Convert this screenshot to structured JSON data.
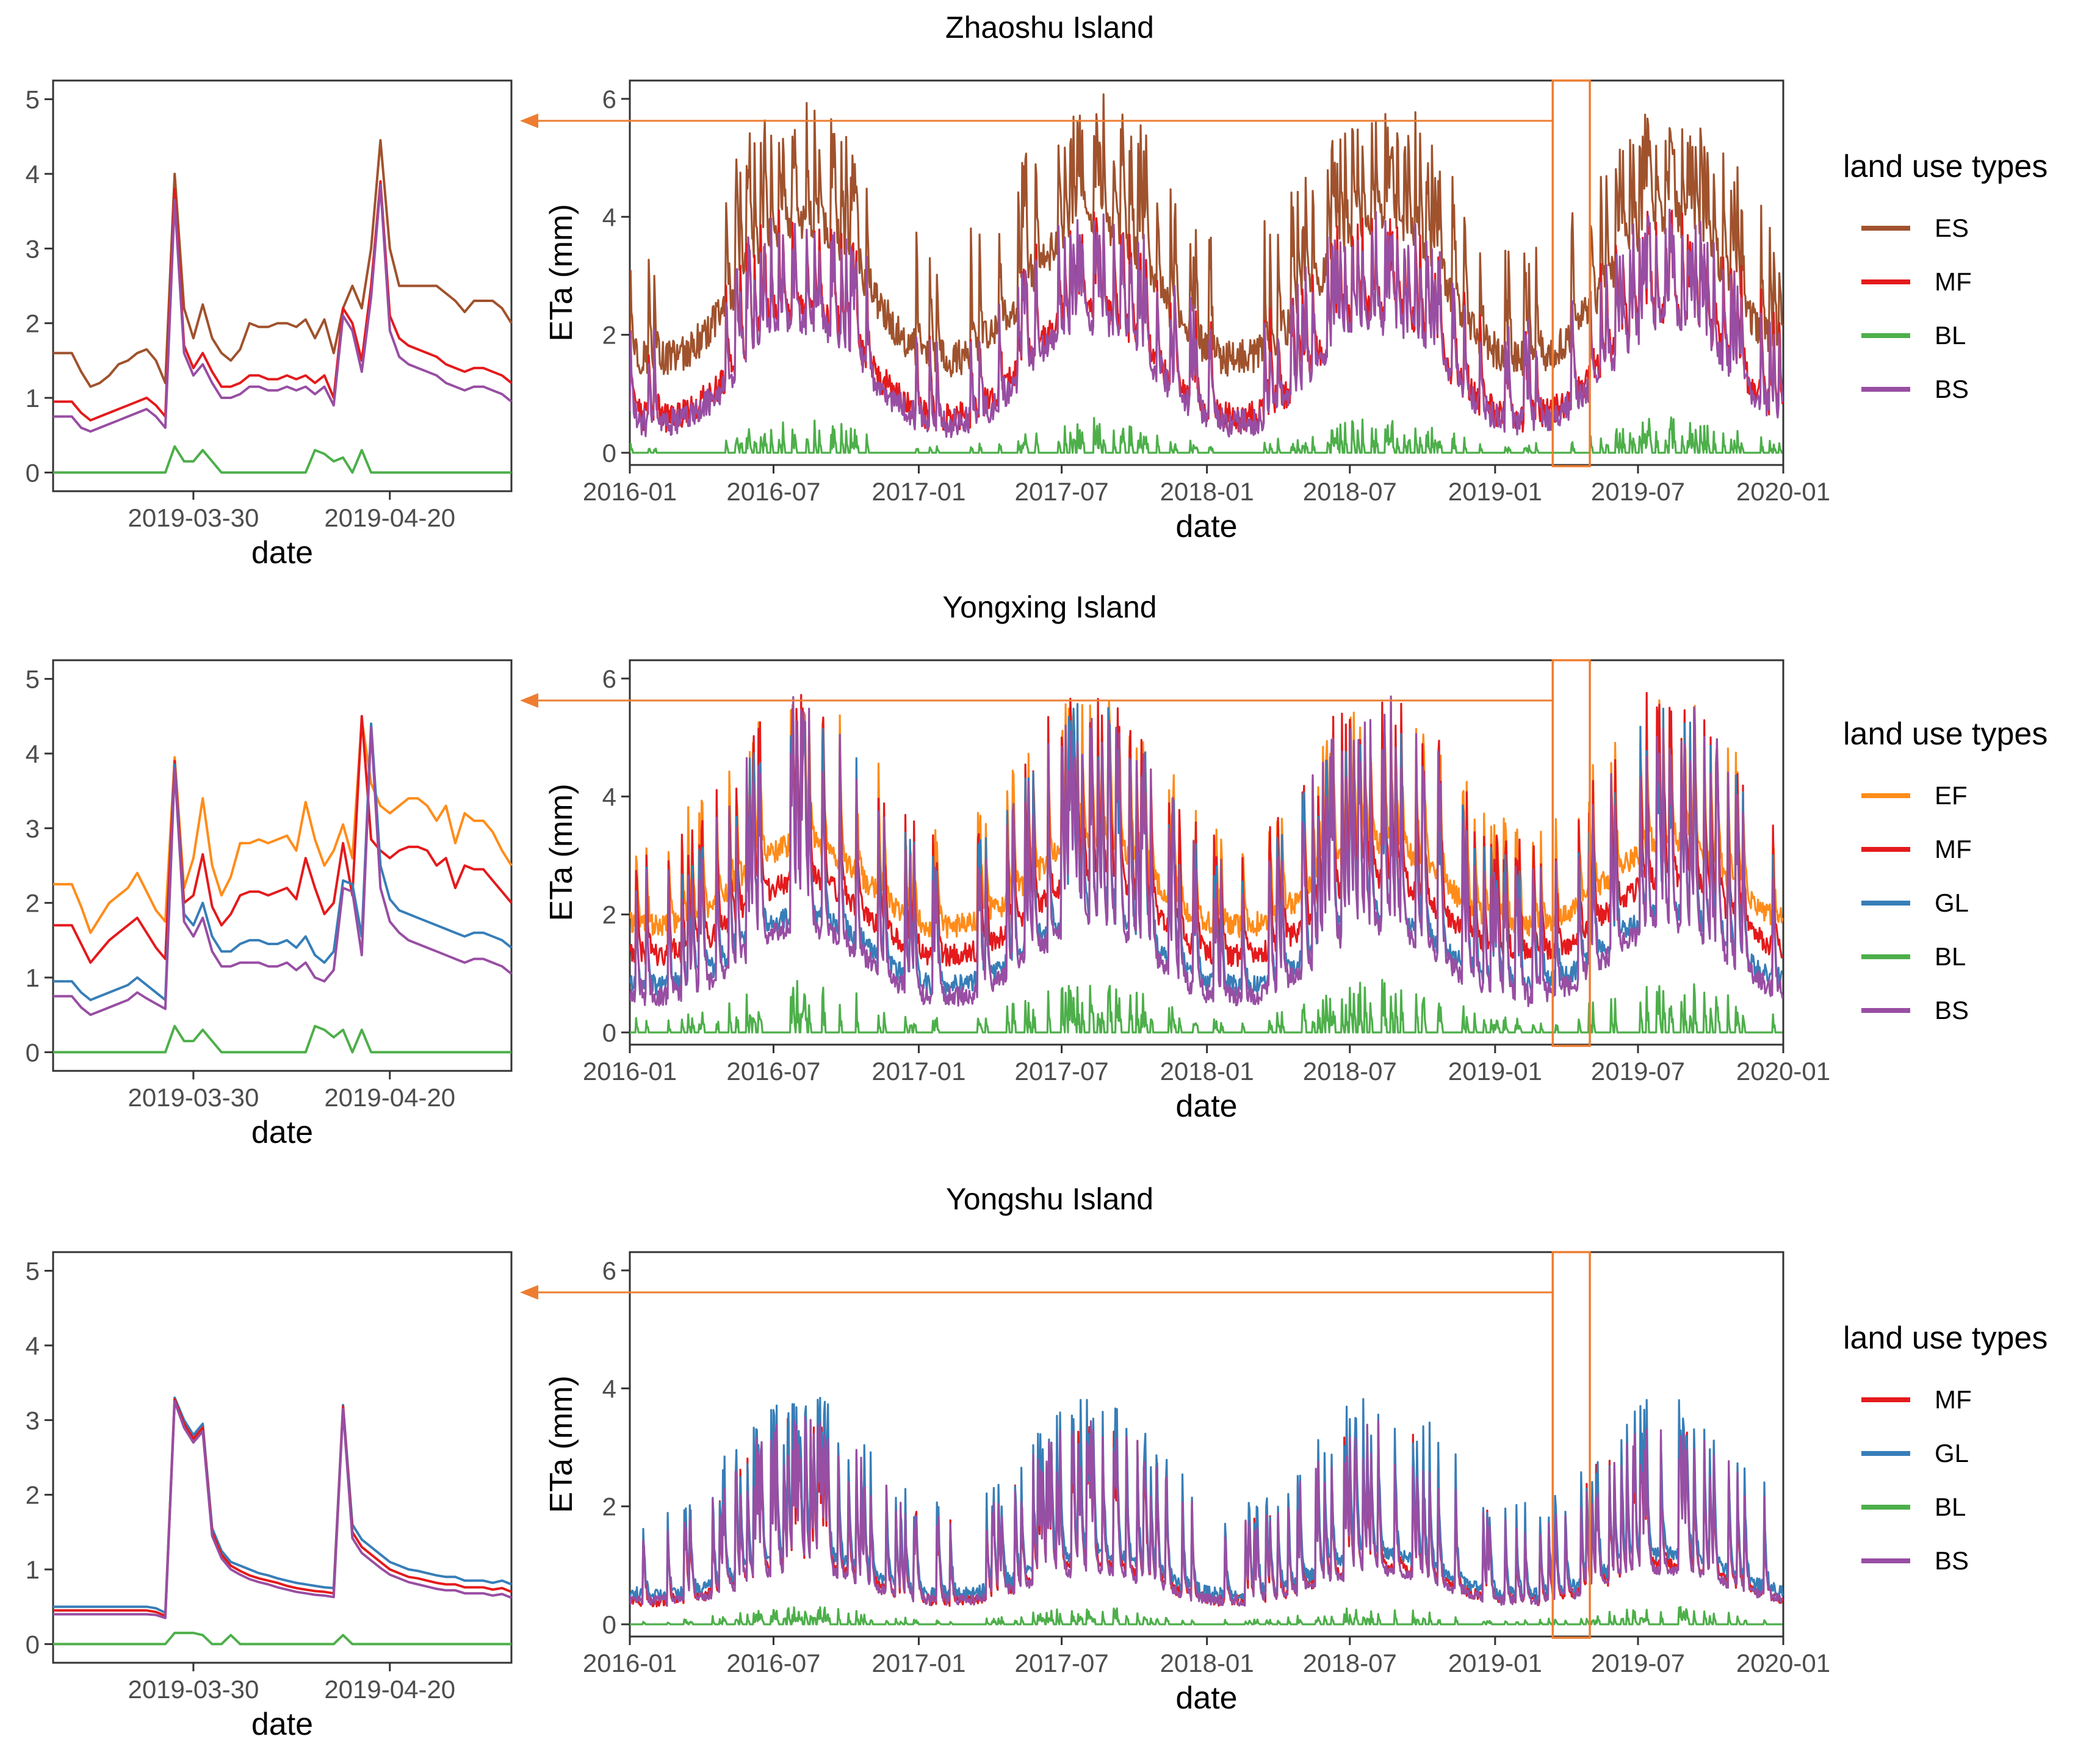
{
  "colors": {
    "ES": "#A0522D",
    "EF": "#FF8C1A",
    "MF": "#E41A1C",
    "GL": "#377EB8",
    "BL": "#4DAF4A",
    "BS": "#984EA3",
    "highlight": "#ED7D31",
    "axis": "#333333",
    "tick": "#4D4D4D"
  },
  "chart_data": [
    {
      "id": "zhaoshu",
      "type": "line",
      "title": "Zhaoshu Island",
      "legend_title": "land use types",
      "legend": [
        "ES",
        "MF",
        "BL",
        "BS"
      ],
      "main": {
        "xlabel": "date",
        "ylabel": "ETa (mm)",
        "xlim": [
          "2016-01",
          "2020-01"
        ],
        "ylim": [
          0,
          6
        ],
        "xticks": [
          "2016-01",
          "2016-07",
          "2017-01",
          "2017-07",
          "2018-01",
          "2018-07",
          "2019-01",
          "2019-07",
          "2020-01"
        ],
        "yticks": [
          0,
          2,
          4,
          6
        ],
        "highlight_window": [
          "2019-03-15",
          "2019-05-01"
        ],
        "series_profile": {
          "ES": {
            "base_min": 1.6,
            "base_max": 3.9,
            "peak_max": 5.8
          },
          "MF": {
            "base_min": 0.6,
            "base_max": 2.4,
            "peak_max": 4.0
          },
          "BS": {
            "base_min": 0.5,
            "base_max": 2.2,
            "peak_max": 4.0
          },
          "BL": {
            "base_min": 0.0,
            "base_max": 0.0,
            "peak_max": 0.6
          }
        }
      },
      "inset": {
        "xlabel": "date",
        "xticks": [
          "2019-03-30",
          "2019-04-20"
        ],
        "yticks": [
          0,
          1,
          2,
          3,
          4,
          5
        ],
        "ylim": [
          -0.25,
          5.25
        ],
        "x_start": "2019-03-15",
        "series": [
          {
            "name": "ES",
            "values": [
              1.6,
              1.6,
              1.6,
              1.35,
              1.15,
              1.2,
              1.3,
              1.45,
              1.5,
              1.6,
              1.65,
              1.5,
              1.2,
              4.0,
              2.2,
              1.8,
              2.25,
              1.8,
              1.6,
              1.5,
              1.65,
              2.0,
              1.95,
              1.95,
              2.0,
              2.0,
              1.95,
              2.05,
              1.8,
              2.05,
              1.6,
              2.2,
              2.5,
              2.2,
              3.0,
              4.45,
              3.0,
              2.5,
              2.5,
              2.5,
              2.5,
              2.5,
              2.4,
              2.3,
              2.15,
              2.3,
              2.3,
              2.3,
              2.2,
              2.0
            ]
          },
          {
            "name": "MF",
            "values": [
              0.95,
              0.95,
              0.95,
              0.8,
              0.7,
              0.75,
              0.8,
              0.85,
              0.9,
              0.95,
              1.0,
              0.9,
              0.75,
              3.8,
              1.7,
              1.4,
              1.6,
              1.35,
              1.15,
              1.15,
              1.2,
              1.3,
              1.3,
              1.25,
              1.25,
              1.3,
              1.25,
              1.3,
              1.2,
              1.3,
              1.0,
              2.2,
              2.0,
              1.5,
              2.5,
              3.9,
              2.1,
              1.8,
              1.7,
              1.65,
              1.6,
              1.55,
              1.45,
              1.4,
              1.35,
              1.4,
              1.4,
              1.35,
              1.3,
              1.2
            ]
          },
          {
            "name": "BS",
            "values": [
              0.75,
              0.75,
              0.75,
              0.6,
              0.55,
              0.6,
              0.65,
              0.7,
              0.75,
              0.8,
              0.85,
              0.75,
              0.6,
              3.65,
              1.6,
              1.3,
              1.45,
              1.2,
              1.0,
              1.0,
              1.05,
              1.15,
              1.15,
              1.1,
              1.1,
              1.15,
              1.1,
              1.15,
              1.05,
              1.15,
              0.9,
              2.1,
              1.9,
              1.35,
              2.35,
              3.85,
              1.9,
              1.55,
              1.45,
              1.4,
              1.35,
              1.3,
              1.2,
              1.15,
              1.1,
              1.15,
              1.15,
              1.1,
              1.05,
              0.95
            ]
          },
          {
            "name": "BL",
            "values": [
              0,
              0,
              0,
              0,
              0,
              0,
              0,
              0,
              0,
              0,
              0,
              0,
              0,
              0.35,
              0.15,
              0.15,
              0.3,
              0.15,
              0,
              0,
              0,
              0,
              0,
              0,
              0,
              0,
              0,
              0,
              0.3,
              0.25,
              0.15,
              0.2,
              0,
              0.3,
              0,
              0,
              0,
              0,
              0,
              0,
              0,
              0,
              0,
              0,
              0,
              0,
              0,
              0,
              0,
              0
            ]
          }
        ]
      }
    },
    {
      "id": "yongxing",
      "type": "line",
      "title": "Yongxing Island",
      "legend_title": "land use types",
      "legend": [
        "EF",
        "MF",
        "GL",
        "BL",
        "BS"
      ],
      "main": {
        "xlabel": "date",
        "ylabel": "ETa (mm)",
        "xlim": [
          "2016-01",
          "2020-01"
        ],
        "ylim": [
          0,
          6
        ],
        "xticks": [
          "2016-01",
          "2016-07",
          "2017-01",
          "2017-07",
          "2018-01",
          "2018-07",
          "2019-01",
          "2019-07",
          "2020-01"
        ],
        "yticks": [
          0,
          2,
          4,
          6
        ],
        "highlight_window": [
          "2019-03-15",
          "2019-05-01"
        ],
        "series_profile": {
          "EF": {
            "base_min": 1.8,
            "base_max": 3.2,
            "peak_max": 5.6
          },
          "MF": {
            "base_min": 1.3,
            "base_max": 2.6,
            "peak_max": 5.7
          },
          "GL": {
            "base_min": 0.8,
            "base_max": 2.0,
            "peak_max": 5.5
          },
          "BS": {
            "base_min": 0.6,
            "base_max": 1.8,
            "peak_max": 5.6
          },
          "BL": {
            "base_min": 0.0,
            "base_max": 0.0,
            "peak_max": 0.9
          }
        }
      },
      "inset": {
        "xlabel": "date",
        "xticks": [
          "2019-03-30",
          "2019-04-20"
        ],
        "yticks": [
          0,
          1,
          2,
          3,
          4,
          5
        ],
        "ylim": [
          -0.25,
          5.25
        ],
        "x_start": "2019-03-15",
        "series": [
          {
            "name": "EF",
            "values": [
              2.25,
              2.25,
              2.25,
              1.95,
              1.6,
              1.8,
              2.0,
              2.1,
              2.2,
              2.4,
              2.15,
              1.9,
              1.75,
              3.95,
              2.2,
              2.6,
              3.4,
              2.5,
              2.1,
              2.35,
              2.8,
              2.8,
              2.85,
              2.8,
              2.85,
              2.9,
              2.7,
              3.35,
              2.85,
              2.5,
              2.7,
              3.05,
              2.6,
              4.45,
              3.6,
              3.3,
              3.2,
              3.3,
              3.4,
              3.4,
              3.3,
              3.1,
              3.3,
              2.8,
              3.2,
              3.1,
              3.1,
              2.95,
              2.7,
              2.5
            ]
          },
          {
            "name": "MF",
            "values": [
              1.7,
              1.7,
              1.7,
              1.45,
              1.2,
              1.35,
              1.5,
              1.6,
              1.7,
              1.8,
              1.6,
              1.4,
              1.25,
              3.9,
              2.0,
              2.1,
              2.65,
              1.95,
              1.7,
              1.85,
              2.1,
              2.15,
              2.15,
              2.1,
              2.15,
              2.2,
              2.05,
              2.6,
              2.2,
              1.85,
              2.0,
              2.8,
              2.1,
              4.5,
              2.85,
              2.7,
              2.6,
              2.7,
              2.75,
              2.75,
              2.7,
              2.5,
              2.6,
              2.2,
              2.5,
              2.45,
              2.45,
              2.3,
              2.15,
              2.0
            ]
          },
          {
            "name": "GL",
            "values": [
              0.95,
              0.95,
              0.95,
              0.8,
              0.7,
              0.75,
              0.8,
              0.85,
              0.9,
              1.0,
              0.9,
              0.8,
              0.7,
              3.85,
              1.85,
              1.7,
              2.0,
              1.55,
              1.35,
              1.35,
              1.45,
              1.5,
              1.5,
              1.45,
              1.45,
              1.5,
              1.4,
              1.55,
              1.3,
              1.2,
              1.35,
              2.3,
              2.25,
              1.55,
              4.4,
              2.5,
              2.05,
              1.9,
              1.85,
              1.8,
              1.75,
              1.7,
              1.65,
              1.6,
              1.55,
              1.6,
              1.6,
              1.55,
              1.5,
              1.4
            ]
          },
          {
            "name": "BS",
            "values": [
              0.75,
              0.75,
              0.75,
              0.6,
              0.5,
              0.55,
              0.6,
              0.65,
              0.7,
              0.8,
              0.72,
              0.65,
              0.58,
              3.8,
              1.75,
              1.55,
              1.8,
              1.35,
              1.15,
              1.15,
              1.2,
              1.2,
              1.2,
              1.15,
              1.15,
              1.2,
              1.1,
              1.2,
              1.0,
              0.95,
              1.1,
              2.2,
              2.15,
              1.3,
              4.35,
              2.2,
              1.75,
              1.6,
              1.5,
              1.45,
              1.4,
              1.35,
              1.3,
              1.25,
              1.2,
              1.25,
              1.25,
              1.2,
              1.15,
              1.05
            ]
          },
          {
            "name": "BL",
            "values": [
              0,
              0,
              0,
              0,
              0,
              0,
              0,
              0,
              0,
              0,
              0,
              0,
              0,
              0.35,
              0.15,
              0.15,
              0.3,
              0.15,
              0,
              0,
              0,
              0,
              0,
              0,
              0,
              0,
              0,
              0,
              0.35,
              0.3,
              0.2,
              0.3,
              0,
              0.3,
              0,
              0,
              0,
              0,
              0,
              0,
              0,
              0,
              0,
              0,
              0,
              0,
              0,
              0,
              0,
              0
            ]
          }
        ]
      }
    },
    {
      "id": "yongshu",
      "type": "line",
      "title": "Yongshu Island",
      "legend_title": "land use types",
      "legend": [
        "MF",
        "GL",
        "BL",
        "BS"
      ],
      "main": {
        "xlabel": "date",
        "ylabel": "ETa (mm)",
        "xlim": [
          "2016-01",
          "2020-01"
        ],
        "ylim": [
          0,
          6
        ],
        "xticks": [
          "2016-01",
          "2016-07",
          "2017-01",
          "2017-07",
          "2018-01",
          "2018-07",
          "2019-01",
          "2019-07",
          "2020-01"
        ],
        "yticks": [
          0,
          2,
          4,
          6
        ],
        "highlight_window": [
          "2019-03-15",
          "2019-05-01"
        ],
        "series_profile": {
          "GL": {
            "base_min": 0.5,
            "base_max": 1.2,
            "peak_max": 3.9
          },
          "MF": {
            "base_min": 0.4,
            "base_max": 1.0,
            "peak_max": 3.5
          },
          "BS": {
            "base_min": 0.4,
            "base_max": 0.9,
            "peak_max": 3.5
          },
          "BL": {
            "base_min": 0.0,
            "base_max": 0.0,
            "peak_max": 0.3
          }
        }
      },
      "inset": {
        "xlabel": "date",
        "xticks": [
          "2019-03-30",
          "2019-04-20"
        ],
        "yticks": [
          0,
          1,
          2,
          3,
          4,
          5
        ],
        "ylim": [
          -0.25,
          5.25
        ],
        "x_start": "2019-03-15",
        "series": [
          {
            "name": "GL",
            "values": [
              0.5,
              0.5,
              0.5,
              0.5,
              0.5,
              0.5,
              0.5,
              0.5,
              0.5,
              0.5,
              0.5,
              0.48,
              0.42,
              3.3,
              3.0,
              2.8,
              2.95,
              1.55,
              1.25,
              1.1,
              1.05,
              1.0,
              0.95,
              0.92,
              0.88,
              0.85,
              0.82,
              0.8,
              0.78,
              0.76,
              0.75,
              3.2,
              1.6,
              1.4,
              1.3,
              1.2,
              1.1,
              1.05,
              1.0,
              0.98,
              0.95,
              0.92,
              0.9,
              0.9,
              0.85,
              0.85,
              0.85,
              0.82,
              0.85,
              0.8
            ]
          },
          {
            "name": "MF",
            "values": [
              0.45,
              0.45,
              0.45,
              0.45,
              0.45,
              0.45,
              0.45,
              0.45,
              0.45,
              0.45,
              0.45,
              0.43,
              0.38,
              3.28,
              2.95,
              2.75,
              2.9,
              1.5,
              1.2,
              1.05,
              0.98,
              0.92,
              0.88,
              0.85,
              0.82,
              0.78,
              0.75,
              0.73,
              0.71,
              0.7,
              0.68,
              3.18,
              1.5,
              1.3,
              1.2,
              1.1,
              1.0,
              0.95,
              0.9,
              0.88,
              0.85,
              0.82,
              0.8,
              0.8,
              0.76,
              0.76,
              0.76,
              0.73,
              0.75,
              0.7
            ]
          },
          {
            "name": "BS",
            "values": [
              0.4,
              0.4,
              0.4,
              0.4,
              0.4,
              0.4,
              0.4,
              0.4,
              0.4,
              0.4,
              0.4,
              0.39,
              0.35,
              3.25,
              2.9,
              2.7,
              2.85,
              1.45,
              1.15,
              1.0,
              0.93,
              0.87,
              0.83,
              0.8,
              0.76,
              0.73,
              0.7,
              0.68,
              0.66,
              0.65,
              0.63,
              3.15,
              1.42,
              1.22,
              1.12,
              1.02,
              0.93,
              0.88,
              0.83,
              0.8,
              0.77,
              0.74,
              0.72,
              0.72,
              0.68,
              0.68,
              0.68,
              0.65,
              0.67,
              0.62
            ]
          },
          {
            "name": "BL",
            "values": [
              0,
              0,
              0,
              0,
              0,
              0,
              0,
              0,
              0,
              0,
              0,
              0,
              0,
              0.15,
              0.15,
              0.15,
              0.12,
              0,
              0,
              0.12,
              0,
              0,
              0,
              0,
              0,
              0,
              0,
              0,
              0,
              0,
              0,
              0.12,
              0,
              0,
              0,
              0,
              0,
              0,
              0,
              0,
              0,
              0,
              0,
              0,
              0,
              0,
              0,
              0,
              0,
              0
            ]
          }
        ]
      }
    }
  ]
}
